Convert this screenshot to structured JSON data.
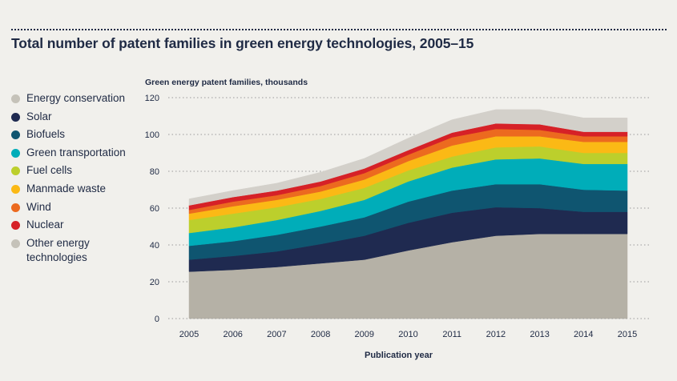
{
  "title": "Total number of patent families in green energy technologies, 2005–15",
  "chart_data": {
    "type": "area",
    "stacked": true,
    "title": "Total number of patent families in green energy technologies, 2005–15",
    "ylabel": "Green energy patent families, thousands",
    "xlabel": "Publication year",
    "x": [
      2005,
      2006,
      2007,
      2008,
      2009,
      2010,
      2011,
      2012,
      2013,
      2014,
      2015
    ],
    "ylim": [
      0,
      120
    ],
    "yticks": [
      0,
      20,
      40,
      60,
      80,
      100,
      120
    ],
    "grid": true,
    "legend_position": "left",
    "series": [
      {
        "name": "Energy conservation",
        "color": "#b5b1a6",
        "values": [
          25.5,
          26.5,
          28,
          30,
          32,
          37,
          41.5,
          45,
          46,
          46,
          46
        ]
      },
      {
        "name": "Solar",
        "color": "#1f2a50",
        "values": [
          6.5,
          7.5,
          8.5,
          10.5,
          13,
          15,
          16,
          15.5,
          14,
          12,
          12
        ]
      },
      {
        "name": "Biofuels",
        "color": "#0f5570",
        "values": [
          7.5,
          8,
          9,
          9.5,
          10,
          11.5,
          12,
          12.5,
          13,
          12,
          11.5
        ]
      },
      {
        "name": "Green transportation",
        "color": "#00adb9",
        "values": [
          7,
          7.5,
          8,
          8.5,
          9.5,
          11,
          12.5,
          13.5,
          14,
          14,
          14.5
        ]
      },
      {
        "name": "Fuel cells",
        "color": "#bccf2c",
        "values": [
          7,
          7.5,
          7,
          6.5,
          6.5,
          6,
          6,
          6.5,
          6.5,
          6,
          6
        ]
      },
      {
        "name": "Manmade waste",
        "color": "#fbb915",
        "values": [
          3.5,
          4,
          4,
          4,
          4.5,
          5,
          6,
          6,
          5.5,
          6,
          6
        ]
      },
      {
        "name": "Wind",
        "color": "#ec6a1f",
        "values": [
          2,
          2.5,
          2.5,
          3,
          3.5,
          3.5,
          4.5,
          4,
          3.5,
          3,
          3
        ]
      },
      {
        "name": "Nuclear",
        "color": "#d62127",
        "values": [
          2.5,
          2.5,
          2.5,
          2.5,
          2.5,
          2.5,
          2.5,
          3,
          3,
          2.5,
          2.5
        ]
      },
      {
        "name": "Other energy\ntechnologies",
        "color": "#d3d0ca",
        "values": [
          3.5,
          3.5,
          4,
          5,
          5.5,
          6.5,
          7,
          7.5,
          8,
          7.5,
          7.5
        ]
      }
    ]
  },
  "legend": [
    {
      "label": "Energy conservation",
      "color": "#c5c2b9"
    },
    {
      "label": "Solar",
      "color": "#1f2a50"
    },
    {
      "label": "Biofuels",
      "color": "#0f5570"
    },
    {
      "label": "Green transportation",
      "color": "#00adb9"
    },
    {
      "label": "Fuel cells",
      "color": "#bccf2c"
    },
    {
      "label": "Manmade waste",
      "color": "#fbb915"
    },
    {
      "label": "Wind",
      "color": "#ec6a1f"
    },
    {
      "label": "Nuclear",
      "color": "#d62127"
    },
    {
      "label": "Other energy\ntechnologies",
      "color": "#c5c2b9"
    }
  ]
}
